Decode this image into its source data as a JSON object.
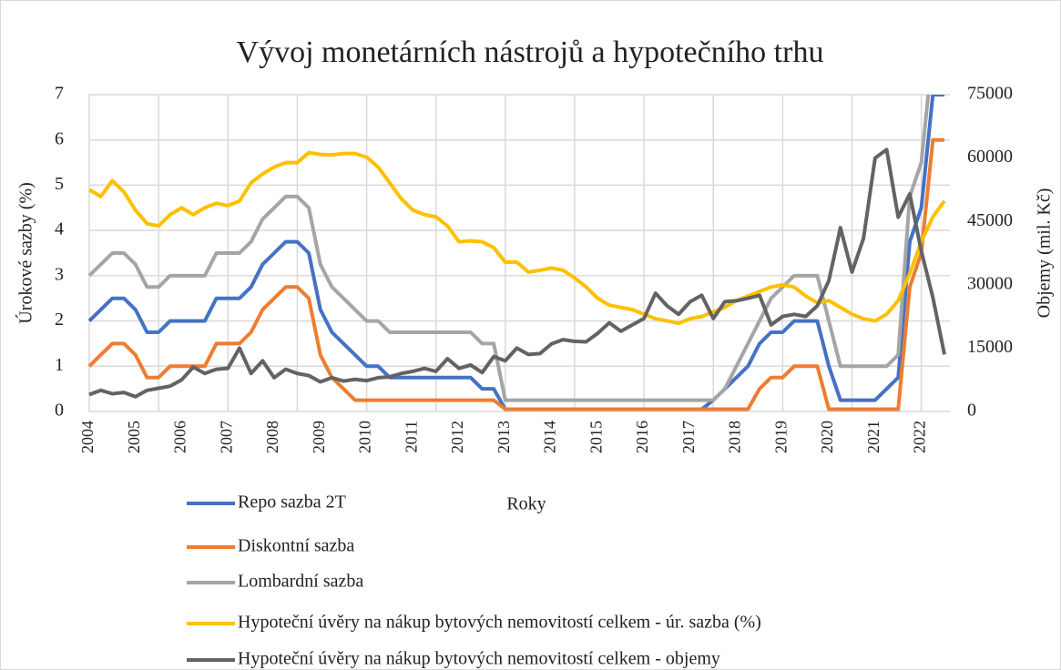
{
  "chart_data": {
    "type": "line",
    "title": "Vývoj monetárních nástrojů a hypotečního trhu",
    "ylabel": "Úrokové sazby (%)",
    "y2label": "Objemy (mil. Kč)",
    "xlabel": "Roky",
    "categories": [
      "2004",
      null,
      null,
      null,
      "2005",
      null,
      null,
      null,
      "2006",
      null,
      null,
      null,
      "2007",
      null,
      null,
      null,
      "2008",
      null,
      null,
      null,
      "2009",
      null,
      null,
      null,
      "2010",
      null,
      null,
      null,
      "2011",
      null,
      null,
      null,
      "2012",
      null,
      null,
      null,
      "2013",
      null,
      null,
      null,
      "2014",
      null,
      null,
      null,
      "2015",
      null,
      null,
      null,
      "2016",
      null,
      null,
      null,
      "2017",
      null,
      null,
      null,
      "2018",
      null,
      null,
      null,
      "2019",
      null,
      null,
      null,
      "2020",
      null,
      null,
      null,
      "2021",
      null,
      null,
      null,
      "2022",
      null,
      null
    ],
    "ylim": [
      0,
      7
    ],
    "yticks": [
      0,
      1,
      2,
      3,
      4,
      5,
      6,
      7
    ],
    "y2lim": [
      0,
      75000
    ],
    "y2ticks": [
      0,
      15000,
      30000,
      45000,
      60000,
      75000
    ],
    "grid": true,
    "series": [
      {
        "name": "Repo sazba 2T",
        "color": "#4472c4",
        "values": [
          2,
          2.25,
          2.5,
          2.5,
          2.25,
          1.75,
          1.75,
          2,
          2,
          2,
          2,
          2.5,
          2.5,
          2.5,
          2.75,
          3.25,
          3.5,
          3.75,
          3.75,
          3.5,
          2.25,
          1.75,
          1.5,
          1.25,
          1,
          1,
          0.75,
          0.75,
          0.75,
          0.75,
          0.75,
          0.75,
          0.75,
          0.75,
          0.5,
          0.5,
          0.05,
          0.05,
          0.05,
          0.05,
          0.05,
          0.05,
          0.05,
          0.05,
          0.05,
          0.05,
          0.05,
          0.05,
          0.05,
          0.05,
          0.05,
          0.05,
          0.05,
          0.05,
          0.25,
          0.5,
          0.75,
          1,
          1.5,
          1.75,
          1.75,
          2,
          2,
          2,
          1,
          0.25,
          0.25,
          0.25,
          0.25,
          0.5,
          0.75,
          3.75,
          4.5,
          7,
          7
        ]
      },
      {
        "name": "Diskontní sazba",
        "color": "#ed7d31",
        "values": [
          1,
          1.25,
          1.5,
          1.5,
          1.25,
          0.75,
          0.75,
          1,
          1,
          1,
          1,
          1.5,
          1.5,
          1.5,
          1.75,
          2.25,
          2.5,
          2.75,
          2.75,
          2.5,
          1.25,
          0.75,
          0.5,
          0.25,
          0.25,
          0.25,
          0.25,
          0.25,
          0.25,
          0.25,
          0.25,
          0.25,
          0.25,
          0.25,
          0.25,
          0.25,
          0.05,
          0.05,
          0.05,
          0.05,
          0.05,
          0.05,
          0.05,
          0.05,
          0.05,
          0.05,
          0.05,
          0.05,
          0.05,
          0.05,
          0.05,
          0.05,
          0.05,
          0.05,
          0.05,
          0.05,
          0.05,
          0.05,
          0.5,
          0.75,
          0.75,
          1,
          1,
          1,
          0.05,
          0.05,
          0.05,
          0.05,
          0.05,
          0.05,
          0.05,
          2.75,
          3.5,
          6,
          6
        ]
      },
      {
        "name": "Lombardní sazba",
        "color": "#a5a5a5",
        "values": [
          3,
          3.25,
          3.5,
          3.5,
          3.25,
          2.75,
          2.75,
          3,
          3,
          3,
          3,
          3.5,
          3.5,
          3.5,
          3.75,
          4.25,
          4.5,
          4.75,
          4.75,
          4.5,
          3.25,
          2.75,
          2.5,
          2.25,
          2,
          2,
          1.75,
          1.75,
          1.75,
          1.75,
          1.75,
          1.75,
          1.75,
          1.75,
          1.5,
          1.5,
          0.25,
          0.25,
          0.25,
          0.25,
          0.25,
          0.25,
          0.25,
          0.25,
          0.25,
          0.25,
          0.25,
          0.25,
          0.25,
          0.25,
          0.25,
          0.25,
          0.25,
          0.25,
          0.25,
          0.5,
          1,
          1.5,
          2,
          2.5,
          2.75,
          3,
          3,
          3,
          2,
          1,
          1,
          1,
          1,
          1,
          1.25,
          4.75,
          5.5,
          8,
          8
        ]
      },
      {
        "name": "Hypoteční úvěry na nákup bytových nemovitostí celkem - úr. sazba (%)",
        "color": "#ffc000",
        "values": [
          4.9,
          4.75,
          5.1,
          4.85,
          4.45,
          4.15,
          4.1,
          4.35,
          4.5,
          4.35,
          4.5,
          4.6,
          4.55,
          4.65,
          5.05,
          5.25,
          5.4,
          5.5,
          5.5,
          5.72,
          5.68,
          5.67,
          5.7,
          5.7,
          5.62,
          5.4,
          5.05,
          4.7,
          4.45,
          4.35,
          4.3,
          4.1,
          3.75,
          3.77,
          3.75,
          3.62,
          3.3,
          3.3,
          3.08,
          3.12,
          3.17,
          3.12,
          2.95,
          2.75,
          2.5,
          2.35,
          2.3,
          2.25,
          2.15,
          2.05,
          2,
          1.95,
          2.05,
          2.1,
          2.2,
          2.3,
          2.45,
          2.55,
          2.65,
          2.75,
          2.8,
          2.75,
          2.55,
          2.4,
          2.45,
          2.3,
          2.15,
          2.05,
          2,
          2.15,
          2.45,
          3.05,
          3.75,
          4.3,
          4.65
        ]
      },
      {
        "name": "Hypoteční úvěry na nákup bytových nemovitostí celkem - objemy",
        "color": "#636363",
        "axis": "y2",
        "values": [
          4000,
          5000,
          4200,
          4500,
          3500,
          5000,
          5500,
          6000,
          7500,
          10500,
          9000,
          10000,
          10200,
          15000,
          9000,
          12000,
          8000,
          10000,
          9000,
          8500,
          7000,
          8000,
          7200,
          7600,
          7300,
          8000,
          8200,
          9000,
          9500,
          10200,
          9500,
          12500,
          10200,
          11000,
          9200,
          13000,
          12000,
          15000,
          13500,
          13700,
          16000,
          17000,
          16600,
          16500,
          18500,
          21000,
          19000,
          20500,
          22000,
          28000,
          25000,
          23000,
          26000,
          27500,
          22000,
          26000,
          26200,
          26800,
          27500,
          20500,
          22500,
          23000,
          22500,
          25000,
          31000,
          43500,
          33000,
          41000,
          60000,
          62000,
          46000,
          51500,
          38000,
          27000,
          13500
        ]
      }
    ]
  }
}
